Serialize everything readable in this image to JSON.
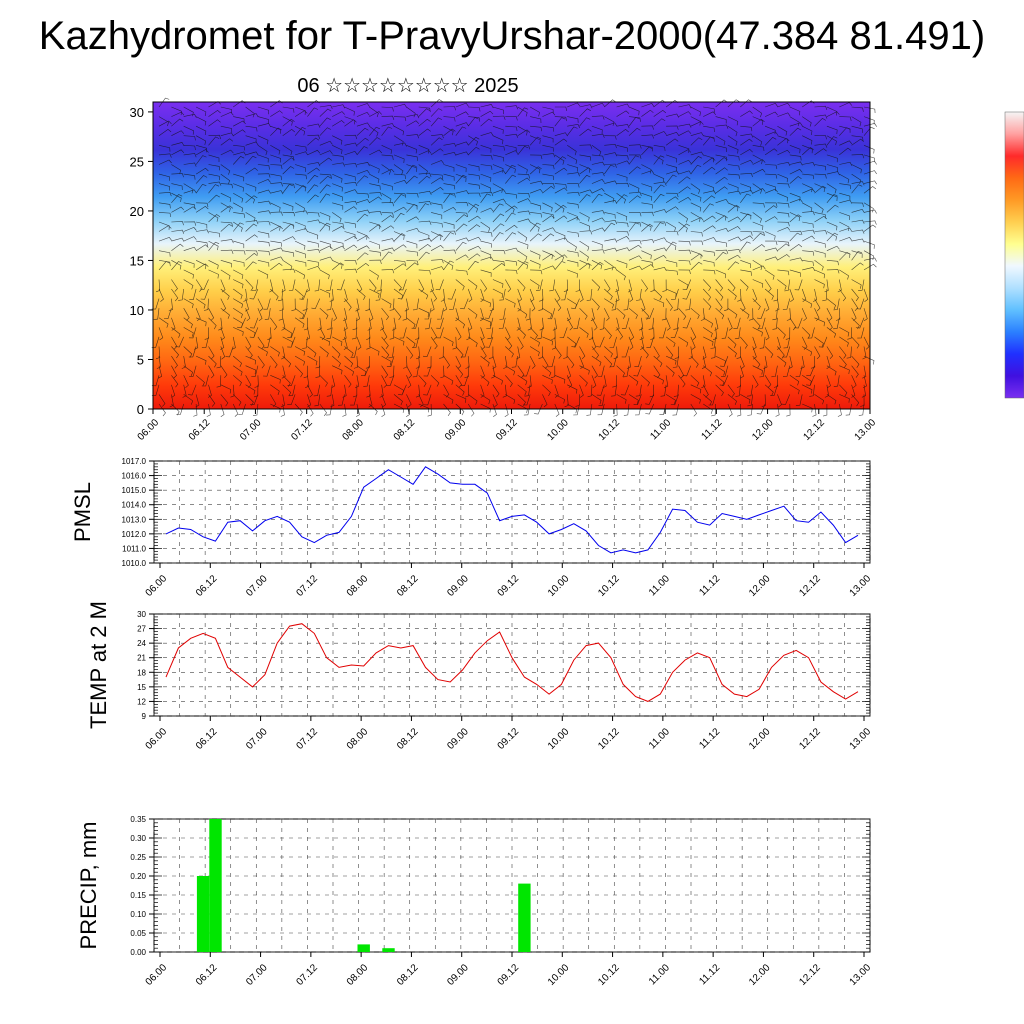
{
  "title": "Kazhydromet for T-PravyUrshar-2000(47.384 81.491)",
  "subtitle": "06 ☆☆☆☆☆☆☆☆ 2025",
  "time_ticks": [
    "06.00",
    "06.12",
    "07.00",
    "07.12",
    "08.00",
    "08.12",
    "09.00",
    "09.12",
    "10.00",
    "10.12",
    "11.00",
    "11.12",
    "12.00",
    "12.12",
    "13.00"
  ],
  "chart_data": [
    {
      "type": "heatmap",
      "panel": "vertical cross-section",
      "yticks": [
        0,
        5,
        10,
        15,
        20,
        25,
        30
      ],
      "ylim": [
        0,
        31
      ],
      "x_range": [
        "06.00",
        "13.00"
      ],
      "levels_top_down": [
        "#7a2ff0",
        "#5b2de6",
        "#3a32d8",
        "#2f63e6",
        "#3f9cf2",
        "#8cd0f7",
        "#e8f4fb",
        "#fff07a",
        "#ffcf4a",
        "#ffaa33",
        "#ff8a1a",
        "#ff6612",
        "#ff3a0a",
        "#ee1a0a"
      ],
      "colorbar": [
        "#f5f5f5",
        "#ffa0a0",
        "#ff2a2a",
        "#ff6a15",
        "#ff9a25",
        "#ffcf50",
        "#ffff90",
        "#f0f8ff",
        "#b0e0ff",
        "#60c0ff",
        "#2b80ff",
        "#2030ff",
        "#4010e0",
        "#7a2ff0"
      ],
      "overlay": "wind barbs"
    },
    {
      "type": "line",
      "ylabel": "PMSL",
      "color": "#0000ee",
      "ylim": [
        1010,
        1017
      ],
      "yticks": [
        "1010.0",
        "1011.0",
        "1012.0",
        "1013.0",
        "1014.0",
        "1015.0",
        "1016.0",
        "1017.0"
      ],
      "x_hours": [
        0,
        3,
        6,
        9,
        12,
        15,
        18,
        21,
        24,
        27,
        30,
        33,
        36,
        39,
        42,
        45,
        48,
        51,
        54,
        57,
        60,
        63,
        66,
        69,
        72,
        75,
        78,
        81,
        84,
        87,
        90,
        93,
        96,
        99,
        102,
        105,
        108,
        111,
        114,
        117,
        120,
        123,
        126,
        129,
        132,
        135,
        138,
        141,
        144,
        147,
        150,
        153,
        156,
        159,
        162,
        165,
        168
      ],
      "values": [
        1012.0,
        1012.4,
        1012.3,
        1011.8,
        1011.5,
        1012.8,
        1012.9,
        1012.2,
        1012.9,
        1013.2,
        1012.8,
        1011.8,
        1011.4,
        1011.9,
        1012.1,
        1013.2,
        1015.2,
        1015.8,
        1016.4,
        1015.9,
        1015.4,
        1016.6,
        1016.1,
        1015.5,
        1015.4,
        1015.4,
        1014.8,
        1012.9,
        1013.2,
        1013.3,
        1012.8,
        1012.0,
        1012.3,
        1012.7,
        1012.2,
        1011.2,
        1010.7,
        1010.9,
        1010.7,
        1010.9,
        1012.1,
        1013.7,
        1013.6,
        1012.8,
        1012.6,
        1013.4,
        1013.2,
        1013.0,
        1013.3,
        1013.6,
        1013.9,
        1012.9,
        1012.8,
        1013.5,
        1012.6,
        1011.4,
        1011.9
      ]
    },
    {
      "type": "line",
      "ylabel": "TEMP at 2 M",
      "color": "#e00000",
      "ylim": [
        9,
        30
      ],
      "yticks": [
        9,
        12,
        15,
        18,
        21,
        24,
        27,
        30
      ],
      "x_hours": [
        0,
        3,
        6,
        9,
        12,
        15,
        18,
        21,
        24,
        27,
        30,
        33,
        36,
        39,
        42,
        45,
        48,
        51,
        54,
        57,
        60,
        63,
        66,
        69,
        72,
        75,
        78,
        81,
        84,
        87,
        90,
        93,
        96,
        99,
        102,
        105,
        108,
        111,
        114,
        117,
        120,
        123,
        126,
        129,
        132,
        135,
        138,
        141,
        144,
        147,
        150,
        153,
        156,
        159,
        162,
        165,
        168
      ],
      "values": [
        17,
        23,
        25,
        26,
        25,
        19,
        17,
        15,
        17.5,
        24,
        27.5,
        28,
        26,
        21,
        19,
        19.5,
        19.3,
        22,
        23.5,
        23,
        23.5,
        19,
        16.5,
        16,
        18.5,
        22,
        24.5,
        26.3,
        21,
        17,
        15.5,
        13.5,
        15.5,
        20.5,
        23.5,
        24,
        21,
        15.5,
        13,
        12,
        13.5,
        18,
        20.5,
        22,
        21,
        15.5,
        13.5,
        13,
        14.5,
        19,
        21.5,
        22.5,
        21,
        16,
        14,
        12.5,
        14
      ]
    },
    {
      "type": "bar",
      "ylabel": "PRECIP, mm",
      "color": "#00e600",
      "ylim": [
        0,
        0.35
      ],
      "yticks": [
        "0.00",
        "0.05",
        "0.10",
        "0.15",
        "0.20",
        "0.25",
        "0.30",
        "0.35"
      ],
      "x_hours": [
        9,
        12,
        48,
        54,
        87
      ],
      "values": [
        0.2,
        0.35,
        0.02,
        0.01,
        0.18
      ]
    }
  ]
}
